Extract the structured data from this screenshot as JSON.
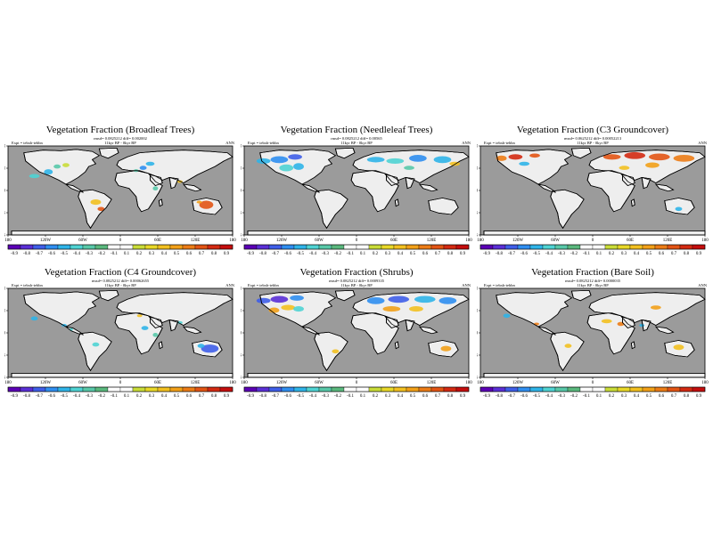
{
  "colors": {
    "ocean": "#9b9b9b",
    "land": "#eeeeee",
    "scale": [
      "#5b00b5",
      "#5a2fd6",
      "#3f5ee8",
      "#2f8ef0",
      "#2fb4e8",
      "#4fd3d3",
      "#58c8a8",
      "#5ab87d",
      "#ffffff",
      "#ffffff",
      "#c9dc38",
      "#e8d828",
      "#f2c020",
      "#f2a018",
      "#ec7c16",
      "#e25414",
      "#d32a12",
      "#c40e0e"
    ]
  },
  "common": {
    "expt_label": "Expt = tebxb-tebbn",
    "season": "ANN",
    "lon_ticks": [
      "180",
      "120W",
      "60W",
      "0",
      "60E",
      "120E",
      "180"
    ],
    "lat_ticks": [
      "90N",
      "45N",
      "0",
      "45S",
      "90S"
    ]
  },
  "panels": [
    {
      "title": "Vegetation Fraction (Broadleaf Trees)",
      "stats": "rmsd= 0.0825212 diff= 0.002002",
      "period": "11kyr BP - 0kyr BP",
      "colorbar_labels": [
        "-0.9",
        "-0.8",
        "-0.7",
        "-0.6",
        "-0.5",
        "-0.4",
        "-0.3",
        "-0.2",
        "-0.1",
        "0.1",
        "0.2",
        "0.3",
        "0.4",
        "0.5",
        "0.6",
        "0.7",
        "0.8",
        "0.9"
      ]
    },
    {
      "title": "Vegetation Fraction (Needleleaf Trees)",
      "stats": "rmsd= 0.0825212 diff= 0.00565",
      "period": "11kyr BP - 0kyr BP",
      "colorbar_labels": [
        "-0.9",
        "-0.8",
        "-0.7",
        "-0.6",
        "-0.5",
        "-0.4",
        "-0.3",
        "-0.2",
        "-0.1",
        "0.1",
        "0.2",
        "0.3",
        "0.4",
        "0.5",
        "0.6",
        "0.7",
        "0.8",
        "0.9"
      ]
    },
    {
      "title": "Vegetation Fraction (C3 Groundcover)",
      "stats": "rmsd= 0.0625212 diff= 0.00052213",
      "period": "11kyr BP - 0kyr BP",
      "colorbar_labels": [
        "-0.9",
        "-0.8",
        "-0.7",
        "-0.6",
        "-0.5",
        "-0.4",
        "-0.3",
        "-0.2",
        "-0.1",
        "0.1",
        "0.2",
        "0.3",
        "0.4",
        "0.5",
        "0.6",
        "0.7",
        "0.8",
        "0.9"
      ]
    },
    {
      "title": "Vegetation Fraction (C4 Groundcover)",
      "stats": "rmsd= 0.0825212 diff= 0.00062655",
      "period": "11kyr BP - 0kyr BP",
      "colorbar_labels": [
        "-0.9",
        "-0.8",
        "-0.7",
        "-0.6",
        "-0.5",
        "-0.4",
        "-0.3",
        "-0.2",
        "-0.1",
        "0.1",
        "0.2",
        "0.3",
        "0.4",
        "0.5",
        "0.6",
        "0.7",
        "0.8",
        "0.9"
      ]
    },
    {
      "title": "Vegetation Fraction (Shrubs)",
      "stats": "rmsd= 0.0825212 diff= 0.0009335",
      "period": "11kyr BP - 0kyr BP",
      "colorbar_labels": [
        "-0.9",
        "-0.8",
        "-0.7",
        "-0.6",
        "-0.5",
        "-0.4",
        "-0.3",
        "-0.2",
        "-0.1",
        "0.1",
        "0.2",
        "0.3",
        "0.4",
        "0.5",
        "0.6",
        "0.7",
        "0.8",
        "0.9"
      ]
    },
    {
      "title": "Vegetation Fraction (Bare Soil)",
      "stats": "rmsd= 0.0825212 diff= 0.0000035",
      "period": "11kyr BP - 0kyr BP",
      "colorbar_labels": [
        "-0.9",
        "-0.8",
        "-0.7",
        "-0.6",
        "-0.5",
        "-0.4",
        "-0.3",
        "-0.2",
        "-0.1",
        "0.1",
        "0.2",
        "0.3",
        "0.4",
        "0.5",
        "0.6",
        "0.7",
        "0.8",
        "0.9"
      ]
    }
  ]
}
